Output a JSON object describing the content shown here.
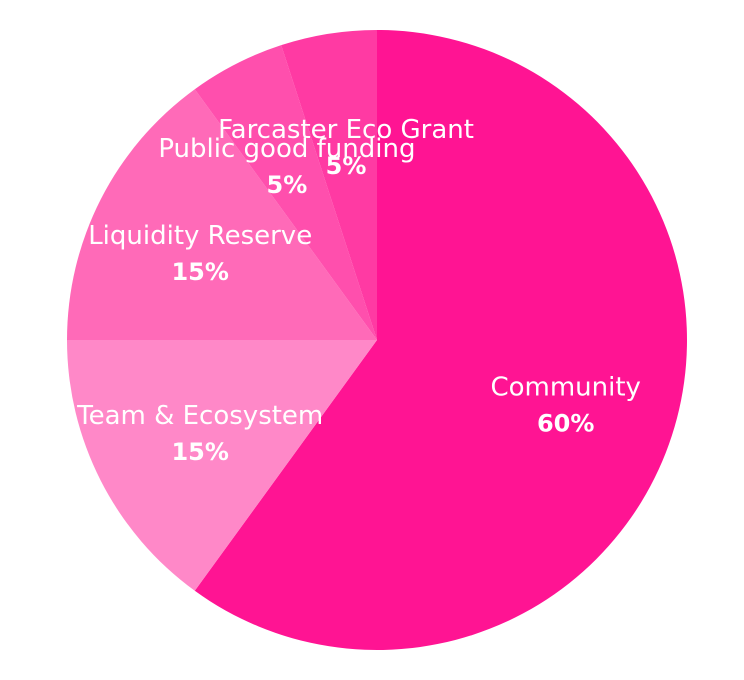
{
  "chart_data": {
    "type": "pie",
    "start_angle_deg": 0,
    "direction": "clockwise",
    "slices": [
      {
        "label": "Community",
        "value": 60,
        "value_label": "60%",
        "color": "#ff1493"
      },
      {
        "label": "Team & Ecosystem",
        "value": 15,
        "value_label": "15%",
        "color": "#ff88c8"
      },
      {
        "label": "Liquidity Reserve",
        "value": 15,
        "value_label": "15%",
        "color": "#ff6ab8"
      },
      {
        "label": "Public good funding",
        "value": 5,
        "value_label": "5%",
        "color": "#ff4fad"
      },
      {
        "label": "Farcaster Eco Grant",
        "value": 5,
        "value_label": "5%",
        "color": "#ff3aa3"
      }
    ]
  }
}
